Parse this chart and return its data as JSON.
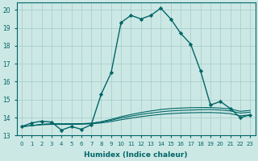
{
  "xlabel": "Humidex (Indice chaleur)",
  "xlim": [
    -0.5,
    23.5
  ],
  "ylim": [
    13.0,
    20.4
  ],
  "yticks": [
    13,
    14,
    15,
    16,
    17,
    18,
    19,
    20
  ],
  "xticks": [
    0,
    1,
    2,
    3,
    4,
    5,
    6,
    7,
    8,
    9,
    10,
    11,
    12,
    13,
    14,
    15,
    16,
    17,
    18,
    19,
    20,
    21,
    22,
    23
  ],
  "background_color": "#cce8e5",
  "grid_color": "#aacfcc",
  "line_color": "#006666",
  "main_line": {
    "x": [
      0,
      1,
      2,
      3,
      4,
      5,
      6,
      7,
      8,
      9,
      10,
      11,
      12,
      13,
      14,
      15,
      16,
      17,
      18,
      19,
      20,
      21,
      22,
      23
    ],
    "y": [
      13.5,
      13.7,
      13.8,
      13.75,
      13.3,
      13.5,
      13.35,
      13.6,
      15.3,
      16.5,
      19.3,
      19.7,
      19.5,
      19.7,
      20.1,
      19.5,
      18.7,
      18.1,
      16.6,
      14.7,
      14.9,
      14.5,
      14.0,
      14.15
    ]
  },
  "flat_lines": [
    [
      13.5,
      13.55,
      13.6,
      13.62,
      13.62,
      13.62,
      13.63,
      13.65,
      13.7,
      13.78,
      13.88,
      13.97,
      14.05,
      14.12,
      14.18,
      14.22,
      14.25,
      14.27,
      14.28,
      14.28,
      14.26,
      14.22,
      14.1,
      14.15
    ],
    [
      13.5,
      13.55,
      13.62,
      13.65,
      13.65,
      13.65,
      13.66,
      13.68,
      13.75,
      13.85,
      13.98,
      14.08,
      14.18,
      14.25,
      14.32,
      14.37,
      14.4,
      14.42,
      14.44,
      14.45,
      14.42,
      14.37,
      14.25,
      14.3
    ],
    [
      13.5,
      13.55,
      13.62,
      13.65,
      13.65,
      13.65,
      13.66,
      13.68,
      13.77,
      13.9,
      14.05,
      14.17,
      14.28,
      14.37,
      14.45,
      14.5,
      14.53,
      14.55,
      14.56,
      14.56,
      14.53,
      14.48,
      14.35,
      14.4
    ]
  ]
}
